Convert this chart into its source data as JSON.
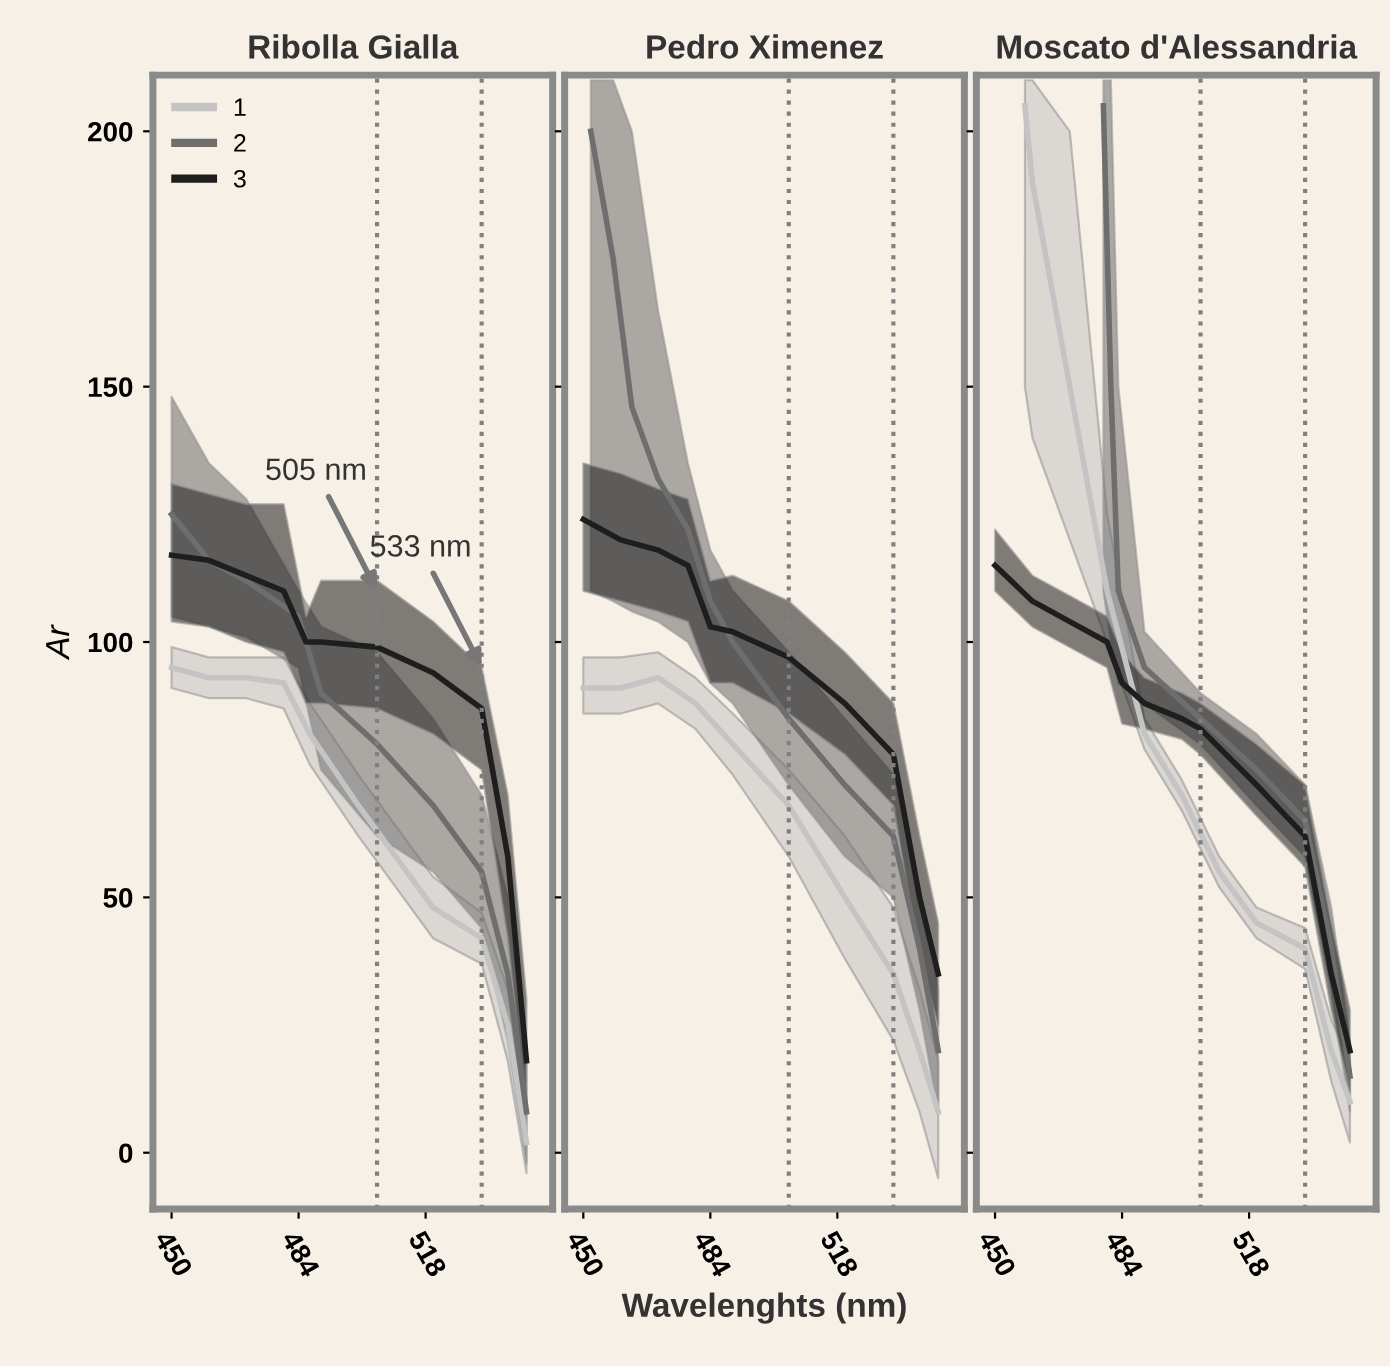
{
  "chart_data": [
    {
      "type": "line",
      "title": "Ribolla Gialla",
      "ylabel": "Ar",
      "xlim": [
        445,
        552
      ],
      "ylim": [
        -11,
        211
      ],
      "xticks": [
        450,
        484,
        518
      ],
      "yticks": [
        0,
        50,
        100,
        150,
        200
      ],
      "grid": false,
      "legend": "top left",
      "marker": "none",
      "line_style": "solid",
      "ref_lines": [
        {
          "axis": "x",
          "value": 505,
          "color": "#808080",
          "line_style": "dotted"
        },
        {
          "axis": "x",
          "value": 533,
          "color": "#808080",
          "line_style": "dotted"
        }
      ],
      "annotations": [
        {
          "text": "505 nm",
          "x": 505,
          "y": 110
        },
        {
          "text": "533 nm",
          "x": 533,
          "y": 95
        }
      ],
      "series": [
        {
          "name": "1",
          "color": "#c4c4c4",
          "x": [
            450,
            460,
            470,
            480,
            487,
            500,
            510,
            520,
            533,
            540,
            545
          ],
          "values": [
            95,
            93,
            93,
            92,
            82,
            68,
            58,
            48,
            42,
            25,
            2
          ],
          "lower": [
            91,
            89,
            89,
            87,
            76,
            62,
            52,
            42,
            37,
            18,
            -4
          ],
          "upper": [
            99,
            97,
            97,
            97,
            88,
            74,
            64,
            54,
            47,
            32,
            8
          ]
        },
        {
          "name": "2",
          "color": "#6e6e6e",
          "x": [
            450,
            460,
            470,
            484,
            490,
            505,
            520,
            533,
            540,
            545
          ],
          "values": [
            125,
            116,
            112,
            105,
            90,
            80,
            68,
            55,
            35,
            8
          ],
          "lower": [
            105,
            103,
            101,
            95,
            75,
            62,
            55,
            44,
            22,
            -2
          ],
          "upper": [
            148,
            135,
            128,
            110,
            103,
            98,
            85,
            70,
            50,
            20
          ]
        },
        {
          "name": "3",
          "color": "#1e1e1e",
          "x": [
            450,
            460,
            470,
            480,
            486,
            490,
            505,
            520,
            533,
            540,
            545
          ],
          "values": [
            117,
            116,
            113,
            110,
            100,
            100,
            99,
            94,
            87,
            58,
            18
          ],
          "lower": [
            104,
            103,
            100,
            98,
            88,
            88,
            87,
            82,
            75,
            42,
            8
          ],
          "upper": [
            131,
            129,
            127,
            127,
            105,
            112,
            112,
            104,
            95,
            70,
            30
          ]
        }
      ]
    },
    {
      "type": "line",
      "title": "Pedro Ximenez",
      "xlabel": "Wavelenghts (nm)",
      "xlim": [
        445,
        552
      ],
      "ylim": [
        -11,
        211
      ],
      "xticks": [
        450,
        484,
        518
      ],
      "yticks": [
        0,
        50,
        100,
        150,
        200
      ],
      "tick_labels": "x",
      "grid": false,
      "marker": "none",
      "line_style": "solid",
      "ref_lines": [
        {
          "axis": "x",
          "value": 505,
          "color": "#808080",
          "line_style": "dotted"
        },
        {
          "axis": "x",
          "value": 533,
          "color": "#808080",
          "line_style": "dotted"
        }
      ],
      "series": [
        {
          "name": "1",
          "color": "#c4c4c4",
          "x": [
            450,
            460,
            470,
            480,
            490,
            505,
            520,
            533,
            540,
            545
          ],
          "values": [
            91,
            91,
            93,
            88,
            80,
            68,
            50,
            35,
            20,
            8
          ],
          "lower": [
            86,
            86,
            88,
            83,
            74,
            58,
            38,
            22,
            8,
            -5
          ],
          "upper": [
            97,
            97,
            98,
            93,
            86,
            75,
            62,
            48,
            32,
            18
          ]
        },
        {
          "name": "2",
          "color": "#6e6e6e",
          "x": [
            452,
            458,
            463,
            470,
            478,
            484,
            490,
            505,
            520,
            533,
            540,
            545
          ],
          "values": [
            200,
            175,
            146,
            132,
            122,
            108,
            100,
            85,
            72,
            62,
            40,
            20
          ],
          "lower": [
            110,
            108,
            106,
            104,
            100,
            92,
            88,
            72,
            58,
            50,
            28,
            8
          ],
          "upper": [
            210,
            210,
            200,
            165,
            135,
            118,
            110,
            98,
            85,
            74,
            52,
            32
          ]
        },
        {
          "name": "3",
          "color": "#1e1e1e",
          "x": [
            450,
            460,
            470,
            478,
            484,
            490,
            505,
            520,
            533,
            540,
            545
          ],
          "values": [
            124,
            120,
            118,
            115,
            103,
            102,
            97,
            88,
            78,
            50,
            35
          ],
          "lower": [
            110,
            108,
            106,
            104,
            92,
            92,
            86,
            78,
            68,
            38,
            25
          ],
          "upper": [
            135,
            133,
            130,
            128,
            112,
            113,
            108,
            98,
            88,
            62,
            45
          ]
        }
      ]
    },
    {
      "type": "line",
      "title": "Moscato d'Alessandria",
      "xlim": [
        445,
        552
      ],
      "ylim": [
        -11,
        211
      ],
      "xticks": [
        450,
        484,
        518
      ],
      "yticks": [
        0,
        50,
        100,
        150,
        200
      ],
      "tick_labels": "x",
      "grid": false,
      "marker": "none",
      "line_style": "solid",
      "ref_lines": [
        {
          "axis": "x",
          "value": 505,
          "color": "#808080",
          "line_style": "dotted"
        },
        {
          "axis": "x",
          "value": 533,
          "color": "#808080",
          "line_style": "dotted"
        }
      ],
      "series": [
        {
          "name": "1",
          "color": "#c4c4c4",
          "x": [
            458,
            460,
            470,
            480,
            490,
            500,
            510,
            520,
            533,
            540,
            545
          ],
          "values": [
            205,
            190,
            150,
            110,
            82,
            70,
            55,
            45,
            40,
            20,
            10
          ],
          "lower": [
            150,
            140,
            120,
            100,
            79,
            67,
            52,
            42,
            36,
            14,
            2
          ],
          "upper": [
            210,
            210,
            200,
            125,
            85,
            73,
            58,
            48,
            44,
            26,
            18
          ]
        },
        {
          "name": "2",
          "color": "#6e6e6e",
          "x": [
            479,
            481,
            483,
            490,
            505,
            520,
            533,
            540,
            545
          ],
          "values": [
            205,
            150,
            110,
            95,
            85,
            75,
            65,
            40,
            15
          ],
          "lower": [
            110,
            100,
            92,
            88,
            80,
            68,
            58,
            32,
            8
          ],
          "upper": [
            210,
            210,
            150,
            102,
            90,
            82,
            72,
            48,
            22
          ]
        },
        {
          "name": "3",
          "color": "#1e1e1e",
          "x": [
            450,
            460,
            470,
            480,
            484,
            490,
            500,
            505,
            520,
            533,
            540,
            545
          ],
          "values": [
            115,
            108,
            104,
            100,
            92,
            88,
            85,
            83,
            72,
            62,
            35,
            20
          ],
          "lower": [
            110,
            103,
            99,
            95,
            84,
            83,
            81,
            78,
            66,
            56,
            28,
            12
          ],
          "upper": [
            122,
            113,
            109,
            105,
            98,
            93,
            90,
            88,
            80,
            72,
            45,
            28
          ]
        }
      ]
    }
  ]
}
